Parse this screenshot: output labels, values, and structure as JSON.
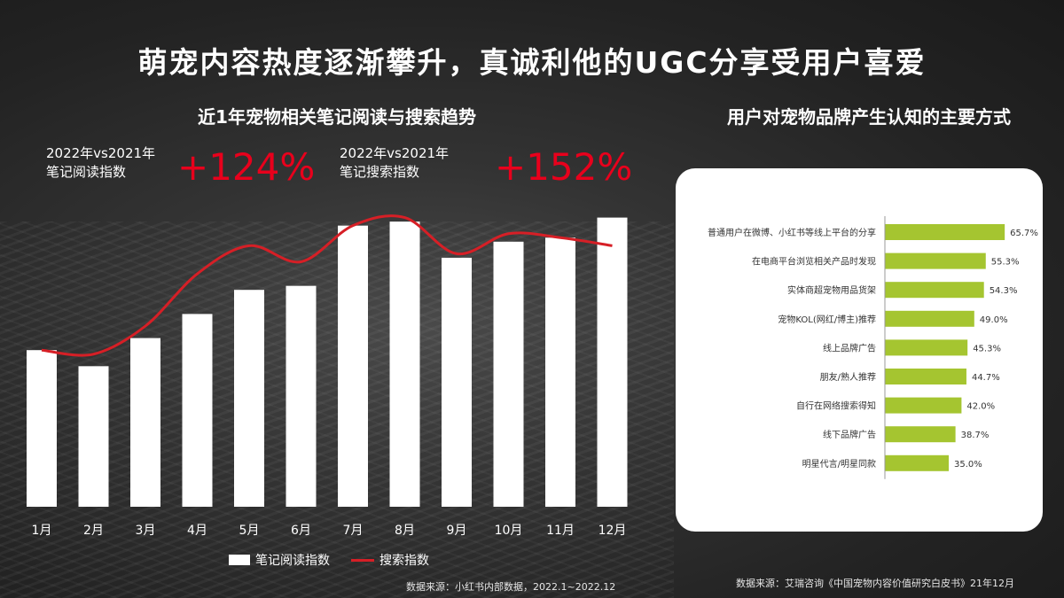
{
  "title": "萌宠内容热度逐渐攀升，真诚利他的UGC分享受用户喜爱",
  "left_panel": {
    "subtitle": "近1年宠物相关笔记阅读与搜索趋势",
    "kpis": [
      {
        "line1": "2022年vs2021年",
        "line2": "笔记阅读指数",
        "value": "+124%"
      },
      {
        "line1": "2022年vs2021年",
        "line2": "笔记搜索指数",
        "value": "+152%"
      }
    ],
    "legend": {
      "bars": "笔记阅读指数",
      "line": "搜索指数"
    },
    "source": "数据来源：小红书内部数据，2022.1~2022.12"
  },
  "right_panel": {
    "subtitle": "用户对宠物品牌产生认知的主要方式",
    "source": "数据来源：艾瑞咨询《中国宠物内容价值研究白皮书》21年12月"
  },
  "colors": {
    "bar": "#ffffff",
    "line": "#d61f26",
    "kpi": "#e8001c",
    "hbar": "#a5c530"
  },
  "chart_data": [
    {
      "type": "bar",
      "title": "近1年宠物相关笔记阅读与搜索趋势",
      "categories": [
        "1月",
        "2月",
        "3月",
        "4月",
        "5月",
        "6月",
        "7月",
        "8月",
        "9月",
        "10月",
        "11月",
        "12月"
      ],
      "series": [
        {
          "name": "笔记阅读指数",
          "type": "bar",
          "values": [
            39,
            35,
            42,
            48,
            54,
            55,
            70,
            71,
            62,
            66,
            67,
            72
          ]
        },
        {
          "name": "搜索指数",
          "type": "line",
          "values": [
            39,
            38,
            45,
            58,
            65,
            61,
            70,
            72,
            63,
            68,
            67,
            65
          ]
        }
      ],
      "ylim": [
        0,
        75
      ],
      "grid": false,
      "legend": "bottom"
    },
    {
      "type": "bar",
      "orientation": "horizontal",
      "title": "用户对宠物品牌产生认知的主要方式",
      "categories": [
        "普通用户在微博、小红书等线上平台的分享",
        "在电商平台浏览相关产品时发现",
        "实体商超宠物用品货架",
        "宠物KOL(网红/博主)推荐",
        "线上品牌广告",
        "朋友/熟人推荐",
        "自行在网络搜索得知",
        "线下品牌广告",
        "明星代言/明星同款"
      ],
      "values": [
        65.7,
        55.3,
        54.3,
        49.0,
        45.3,
        44.7,
        42.0,
        38.7,
        35.0
      ],
      "value_labels": [
        "65.7%",
        "55.3%",
        "54.3%",
        "49.0%",
        "45.3%",
        "44.7%",
        "42.0%",
        "38.7%",
        "35.0%"
      ],
      "xlim": [
        0,
        70
      ],
      "grid": false
    }
  ]
}
